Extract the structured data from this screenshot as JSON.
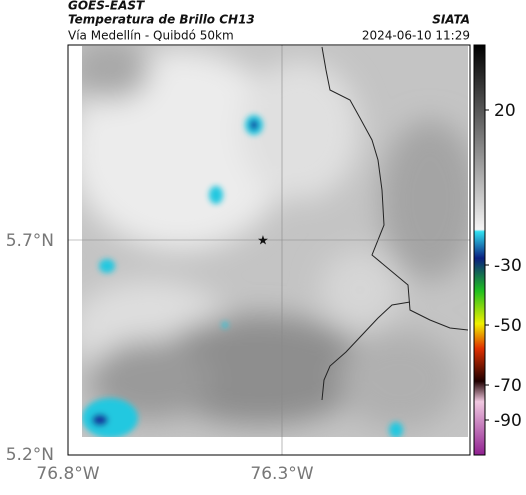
{
  "header": {
    "source": "GOES-EAST",
    "title": "Temperatura de Brillo CH13",
    "agency": "SIATA",
    "route": "Vía Medellín - Quibdó 50km",
    "timestamp": "2024-06-10 11:29"
  },
  "map": {
    "lat_labels": [
      "5.7°N",
      "5.2°N"
    ],
    "lon_labels": [
      "76.8°W",
      "76.3°W"
    ]
  },
  "colorbar": {
    "labels": [
      "20",
      "-30",
      "-50",
      "-70",
      "-90"
    ]
  }
}
